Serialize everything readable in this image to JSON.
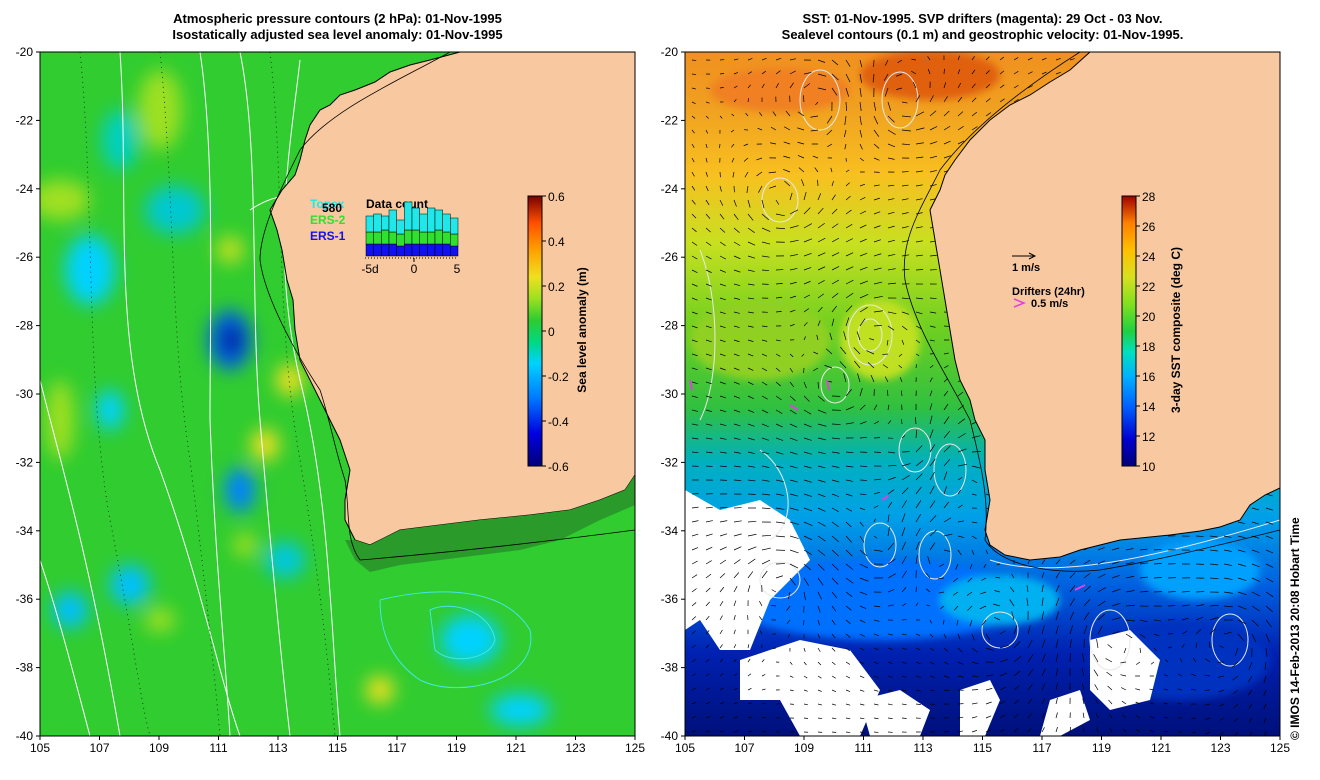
{
  "left_panel": {
    "title_line1": "Atmospheric pressure contours (2 hPa): 01-Nov-1995",
    "title_line2": "Isostatically adjusted sea level anomaly: 01-Nov-1995",
    "colorbar": {
      "label": "Sea level anomaly (m)",
      "ticks": [
        "0.6",
        "0.4",
        "0.2",
        "0",
        "-0.2",
        "-0.4",
        "-0.6"
      ],
      "colors": [
        "#00007a",
        "#0000e0",
        "#0078ff",
        "#00d2ff",
        "#00d880",
        "#2ecc30",
        "#9ce020",
        "#f0e020",
        "#ffa000",
        "#ff5000",
        "#c81000",
        "#7a0000"
      ]
    },
    "inset": {
      "title": "Data count",
      "count": "580",
      "legend": [
        {
          "name": "Topex",
          "color": "#20e8e8"
        },
        {
          "name": "ERS-2",
          "color": "#30e030"
        },
        {
          "name": "ERS-1",
          "color": "#1010f0"
        }
      ],
      "x_ticks": [
        "-5d",
        "0",
        "5"
      ],
      "bars": [
        {
          "topex": 0.4,
          "ers2": 0.3,
          "ers1": 0.3
        },
        {
          "topex": 0.45,
          "ers2": 0.3,
          "ers1": 0.3
        },
        {
          "topex": 0.35,
          "ers2": 0.35,
          "ers1": 0.3
        },
        {
          "topex": 0.55,
          "ers2": 0.3,
          "ers1": 0.3
        },
        {
          "topex": 0.35,
          "ers2": 0.3,
          "ers1": 0.25
        },
        {
          "topex": 0.7,
          "ers2": 0.35,
          "ers1": 0.3
        },
        {
          "topex": 0.55,
          "ers2": 0.35,
          "ers1": 0.3
        },
        {
          "topex": 0.45,
          "ers2": 0.3,
          "ers1": 0.3
        },
        {
          "topex": 0.6,
          "ers2": 0.3,
          "ers1": 0.3
        },
        {
          "topex": 0.5,
          "ers2": 0.35,
          "ers1": 0.3
        },
        {
          "topex": 0.45,
          "ers2": 0.3,
          "ers1": 0.3
        },
        {
          "topex": 0.4,
          "ers2": 0.3,
          "ers1": 0.25
        }
      ]
    }
  },
  "right_panel": {
    "title_line1": "SST: 01-Nov-1995. SVP drifters (magenta): 29 Oct - 03 Nov.",
    "title_line2": "Sealevel contours (0.1 m) and geostrophic velocity: 01-Nov-1995.",
    "colorbar": {
      "label": "3-day SST composite (deg C)",
      "ticks": [
        "28",
        "26",
        "24",
        "22",
        "20",
        "18",
        "16",
        "14",
        "12",
        "10"
      ],
      "colors": [
        "#00007a",
        "#0000d0",
        "#0060ff",
        "#00b0ff",
        "#00e0c0",
        "#20d040",
        "#80e020",
        "#d8e020",
        "#ffc000",
        "#ff8000",
        "#e04000",
        "#a00000"
      ]
    },
    "velocity_label": "1 m/s",
    "drifters_label": "Drifters (24hr)",
    "drifter_scale": "0.5 m/s"
  },
  "axes": {
    "y_ticks": [
      "-20",
      "-22",
      "-24",
      "-26",
      "-28",
      "-30",
      "-32",
      "-34",
      "-36",
      "-38",
      "-40"
    ],
    "x_ticks": [
      "105",
      "107",
      "109",
      "111",
      "113",
      "115",
      "117",
      "119",
      "121",
      "123",
      "125"
    ],
    "lon_range": [
      105,
      125
    ],
    "lat_range": [
      -40,
      -20
    ]
  },
  "land_color": "#f8c8a0",
  "credit": "© IMOS 14-Feb-2013 20:08 Hobart Time"
}
